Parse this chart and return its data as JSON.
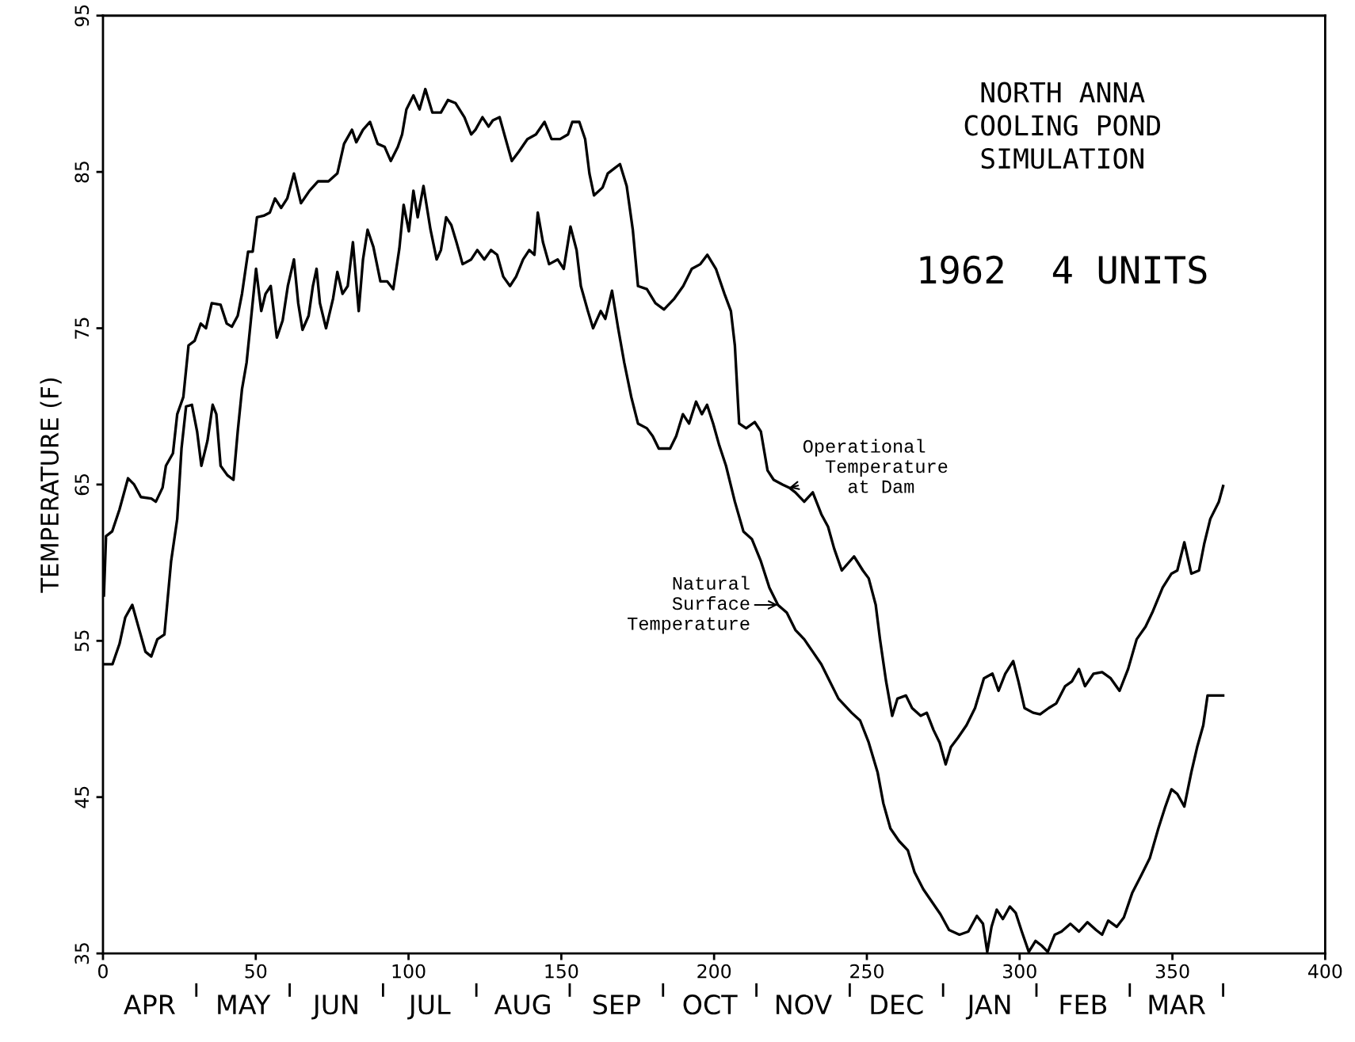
{
  "chart_data": {
    "type": "line",
    "title": "NORTH ANNA\nCOOLING POND\nSIMULATION",
    "subtitle": "1962  4 UNITS",
    "ylabel": "TEMPERATURE (F)",
    "xlim": [
      0,
      400
    ],
    "xticks": [
      0,
      50,
      100,
      150,
      200,
      250,
      300,
      350,
      400
    ],
    "ylim": [
      35,
      95
    ],
    "yticks": [
      35,
      45,
      55,
      65,
      75,
      85,
      95
    ],
    "grid": false,
    "legend": false,
    "marker": "none",
    "line_style": "solid",
    "annotations": [
      {
        "text": "Operational\n  Temperature\n    at Dam",
        "x": 224.6,
        "y": 64.8
      },
      {
        "text": "Natural\n  Surface\n    Temperature",
        "x": 220.9,
        "y": 57.3
      },
      "APR",
      "MAY",
      "JUN",
      "JUL",
      "AUG",
      "SEP",
      "OCT",
      "NOV",
      "DEC",
      "JAN",
      "FEB",
      "MAR"
    ],
    "series": [
      {
        "color": "#000000",
        "x": [
          0.3,
          1,
          3,
          5.4,
          8.2,
          10.2,
          12.4,
          15.8,
          17.3,
          19.5,
          20.6,
          22.9,
          24.3,
          26.3,
          28,
          30,
          32,
          33.7,
          35.6,
          38.5,
          40.5,
          42.2,
          44.1,
          45.5,
          47.5,
          49,
          50.4,
          52.6,
          54.6,
          56.3,
          58.3,
          60.3,
          62.5,
          64.8,
          67.6,
          70.4,
          73.8,
          76.7,
          78.9,
          81.5,
          82.9,
          85.1,
          87.4,
          89.9,
          92.2,
          94.2,
          96.5,
          97.9,
          99.3,
          101.6,
          103.6,
          105.5,
          107.8,
          110.6,
          112.9,
          115.4,
          118.3,
          120.5,
          121.9,
          124.2,
          126.2,
          127.6,
          129.8,
          131.8,
          133.8,
          136.1,
          138.9,
          141.7,
          144.5,
          146.8,
          149.6,
          152.2,
          153.6,
          155.9,
          157.8,
          159.2,
          160.7,
          163.5,
          165.2,
          167.2,
          169.2,
          171.4,
          173.4,
          175.1,
          178,
          180.8,
          183.6,
          187,
          189.9,
          192.7,
          195.5,
          197.8,
          200.6,
          203.4,
          205.5,
          206.8,
          208.2,
          210.5,
          213.3,
          215.3,
          217.5,
          219.5,
          222.4,
          224.6,
          226.6,
          229.5,
          232.3,
          235.1,
          237.3,
          239.3,
          241.8,
          245.8,
          248.7,
          250.6,
          252.9,
          254.3,
          256.3,
          258.3,
          260,
          262.8,
          264.8,
          267.6,
          269.6,
          271.8,
          273.8,
          275.8,
          277.5,
          279.8,
          282.6,
          285.4,
          288.3,
          291.1,
          293.1,
          295.3,
          297.9,
          299.6,
          301.6,
          304.4,
          306.7,
          309.5,
          312,
          314.9,
          317.1,
          319.4,
          321.4,
          324.2,
          327,
          329.8,
          332.7,
          335.5,
          338.3,
          341.2,
          343.4,
          346.8,
          349.7,
          351.6,
          353.9,
          356.2,
          358.7,
          360.4,
          362.4,
          365.2,
          366.6
        ],
        "values": [
          57.9,
          61.7,
          62.0,
          63.4,
          65.4,
          65.0,
          64.2,
          64.1,
          63.9,
          64.8,
          66.2,
          67.0,
          69.5,
          70.6,
          73.9,
          74.2,
          75.3,
          75.0,
          76.6,
          76.5,
          75.3,
          75.1,
          75.8,
          77.2,
          79.9,
          79.9,
          82.1,
          82.2,
          82.4,
          83.3,
          82.7,
          83.3,
          84.9,
          83.0,
          83.8,
          84.4,
          84.4,
          84.9,
          86.8,
          87.7,
          86.9,
          87.7,
          88.2,
          86.8,
          86.6,
          85.7,
          86.6,
          87.4,
          89.0,
          89.9,
          89.0,
          90.3,
          88.8,
          88.8,
          89.6,
          89.4,
          88.5,
          87.4,
          87.7,
          88.5,
          87.9,
          88.3,
          88.5,
          87.1,
          85.7,
          86.3,
          87.1,
          87.4,
          88.2,
          87.1,
          87.1,
          87.4,
          88.2,
          88.2,
          87.1,
          84.9,
          83.5,
          84.0,
          84.9,
          85.2,
          85.5,
          84.1,
          81.3,
          77.7,
          77.5,
          76.6,
          76.2,
          76.9,
          77.7,
          78.8,
          79.1,
          79.7,
          78.8,
          77.2,
          76.1,
          73.9,
          68.9,
          68.6,
          69.0,
          68.4,
          65.9,
          65.3,
          65.0,
          64.8,
          64.5,
          63.9,
          64.5,
          63.1,
          62.3,
          60.9,
          59.5,
          60.4,
          59.5,
          59.0,
          57.3,
          55.1,
          52.4,
          50.2,
          51.3,
          51.5,
          50.7,
          50.2,
          50.4,
          49.3,
          48.5,
          47.1,
          48.2,
          48.8,
          49.6,
          50.7,
          52.6,
          52.9,
          51.8,
          52.9,
          53.7,
          52.4,
          50.7,
          50.4,
          50.3,
          50.7,
          51.0,
          52.1,
          52.4,
          53.2,
          52.1,
          52.9,
          53.0,
          52.6,
          51.8,
          53.2,
          55.1,
          55.9,
          56.8,
          58.4,
          59.3,
          59.5,
          61.3,
          59.3,
          59.5,
          61.2,
          62.8,
          63.9,
          64.9
        ]
      },
      {
        "color": "#000000",
        "x": [
          0,
          3.1,
          5.4,
          7.3,
          9.6,
          11.6,
          13.9,
          15.8,
          17.8,
          20.1,
          22.3,
          24.3,
          25.7,
          27.2,
          29.1,
          30.8,
          32.2,
          34.2,
          35.9,
          37.1,
          38.5,
          40.7,
          42.7,
          44.1,
          45.5,
          47,
          48.4,
          50.1,
          51.8,
          53.2,
          54.9,
          56.9,
          58.8,
          60.5,
          62.5,
          63.9,
          65.3,
          67.3,
          68.7,
          69.9,
          71,
          73,
          75.3,
          76.7,
          78.4,
          80.1,
          81.8,
          83.7,
          85.1,
          86.6,
          88.5,
          90.8,
          93,
          95,
          97,
          98.4,
          100.1,
          101.6,
          103,
          104.9,
          107.2,
          109.2,
          110.6,
          112.3,
          114,
          115.7,
          117.7,
          120.5,
          122.5,
          124.8,
          127,
          129,
          131,
          133.2,
          135.2,
          137.5,
          139.5,
          141.2,
          142.3,
          144,
          146,
          148.8,
          150.8,
          153,
          155,
          156.4,
          158.7,
          160.4,
          162.9,
          164.4,
          166.6,
          168.6,
          170.6,
          172.9,
          175.1,
          178,
          179.9,
          181.9,
          185.6,
          187.6,
          189.8,
          191.8,
          194.1,
          196,
          197.7,
          199.7,
          201.7,
          203.9,
          206.8,
          209.6,
          212.4,
          215.3,
          218.1,
          220.9,
          223.8,
          226.6,
          229.5,
          232.3,
          235.1,
          237.9,
          240.7,
          245,
          247.8,
          250.6,
          253.5,
          255.4,
          257.7,
          260.5,
          263.4,
          265.6,
          268.5,
          271.3,
          274.1,
          276.9,
          280.3,
          283.2,
          286,
          288,
          289.4,
          290.8,
          292.5,
          294.5,
          296.8,
          298.7,
          300.7,
          303,
          305.2,
          307.2,
          309.2,
          311.5,
          313.7,
          316.6,
          319.4,
          322.2,
          325,
          327,
          329,
          331.8,
          334.1,
          336.9,
          339.8,
          342.6,
          345.4,
          347.7,
          349.7,
          351.6,
          353.9,
          356.2,
          358.1,
          360.1,
          361.5,
          363.8,
          366.6
        ],
        "values": [
          53.5,
          53.5,
          54.8,
          56.5,
          57.3,
          55.9,
          54.3,
          54.0,
          55.1,
          55.4,
          60.1,
          62.8,
          67.3,
          70.0,
          70.1,
          68.4,
          66.2,
          67.8,
          70.1,
          69.5,
          66.2,
          65.6,
          65.3,
          68.4,
          71.1,
          72.8,
          75.5,
          78.8,
          76.1,
          77.2,
          77.7,
          74.4,
          75.5,
          77.7,
          79.4,
          76.6,
          74.9,
          75.8,
          77.7,
          78.8,
          76.6,
          75.0,
          76.9,
          78.6,
          77.2,
          77.7,
          80.5,
          76.1,
          79.4,
          81.3,
          80.2,
          78.0,
          78.0,
          77.5,
          80.1,
          82.9,
          81.2,
          83.8,
          82.1,
          84.1,
          81.3,
          79.4,
          80.0,
          82.1,
          81.6,
          80.5,
          79.1,
          79.4,
          80.0,
          79.4,
          80.0,
          79.7,
          78.3,
          77.7,
          78.3,
          79.4,
          80.0,
          79.7,
          82.4,
          80.5,
          79.1,
          79.4,
          78.8,
          81.5,
          80.0,
          77.7,
          76.1,
          75.0,
          76.1,
          75.6,
          77.4,
          75.0,
          72.8,
          70.6,
          68.9,
          68.6,
          68.1,
          67.3,
          67.3,
          68.1,
          69.5,
          68.9,
          70.3,
          69.5,
          70.1,
          68.9,
          67.5,
          66.2,
          63.9,
          62.0,
          61.5,
          60.1,
          58.4,
          57.3,
          56.8,
          55.7,
          55.1,
          54.3,
          53.5,
          52.4,
          51.3,
          50.4,
          49.9,
          48.5,
          46.6,
          44.6,
          43.0,
          42.2,
          41.6,
          40.2,
          39.1,
          38.3,
          37.5,
          36.5,
          36.2,
          36.4,
          37.4,
          36.9,
          35.1,
          36.7,
          37.8,
          37.2,
          38.0,
          37.6,
          36.4,
          35.1,
          35.8,
          35.5,
          35.1,
          36.2,
          36.4,
          36.9,
          36.4,
          37.0,
          36.5,
          36.2,
          37.1,
          36.7,
          37.3,
          38.9,
          40.0,
          41.1,
          43.0,
          44.4,
          45.5,
          45.2,
          44.4,
          46.6,
          48.2,
          49.6,
          51.5,
          51.5,
          51.5
        ]
      }
    ]
  }
}
